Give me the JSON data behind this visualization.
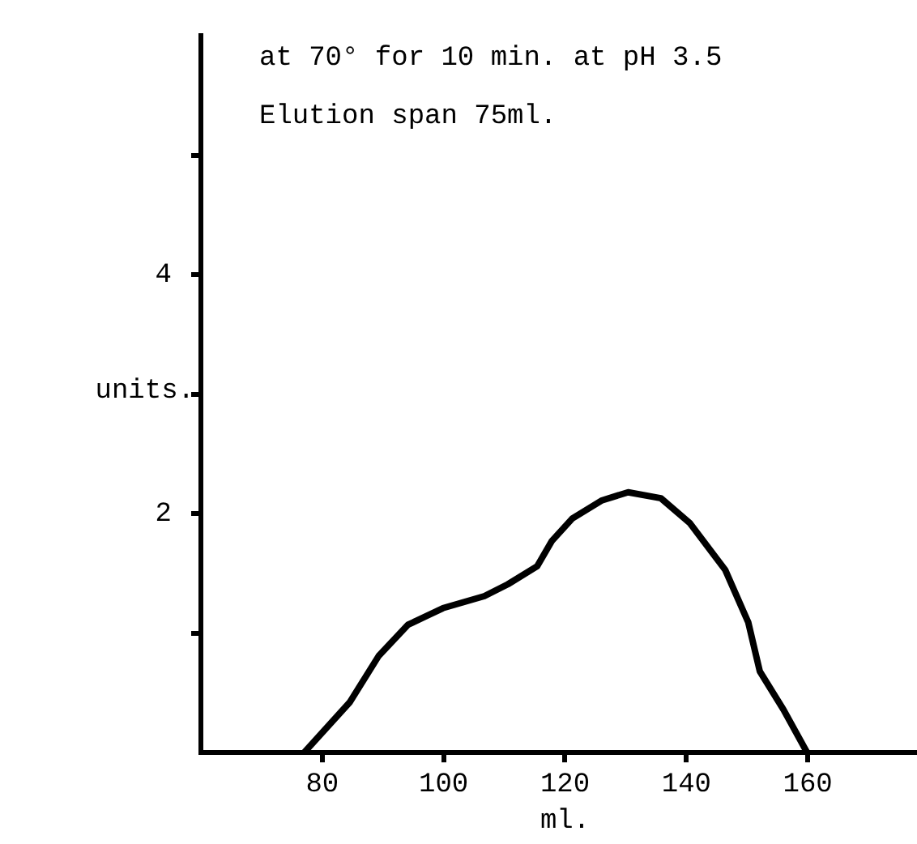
{
  "chart_data": {
    "type": "line",
    "ylabel": "units.",
    "xlabel": "ml.",
    "annotations": [
      "at 70° for 10 min. at pH 3.5",
      "Elution span 75ml."
    ],
    "xlim": [
      60,
      178
    ],
    "xticks": [
      80,
      100,
      120,
      140,
      160
    ],
    "ylim": [
      0,
      6
    ],
    "yticks": [
      {
        "value": 1,
        "label": null
      },
      2,
      {
        "value": 3,
        "label": null
      },
      4,
      {
        "value": 5,
        "label": null
      }
    ],
    "grid": false,
    "legend": false,
    "marker": "none",
    "line_style": "solid",
    "series": [
      {
        "color": "#000000",
        "x": [
          77,
          84.5,
          89.3,
          94.1,
          99.9,
          106.7,
          110.6,
          115.4,
          117.8,
          121.2,
          126,
          130.4,
          135.8,
          140.6,
          146.4,
          150.2,
          152.1,
          156,
          159.9
        ],
        "values": [
          0,
          0.42,
          0.81,
          1.07,
          1.21,
          1.31,
          1.41,
          1.56,
          1.77,
          1.96,
          2.11,
          2.18,
          2.13,
          1.92,
          1.53,
          1.09,
          0.68,
          0.36,
          0
        ]
      }
    ]
  }
}
